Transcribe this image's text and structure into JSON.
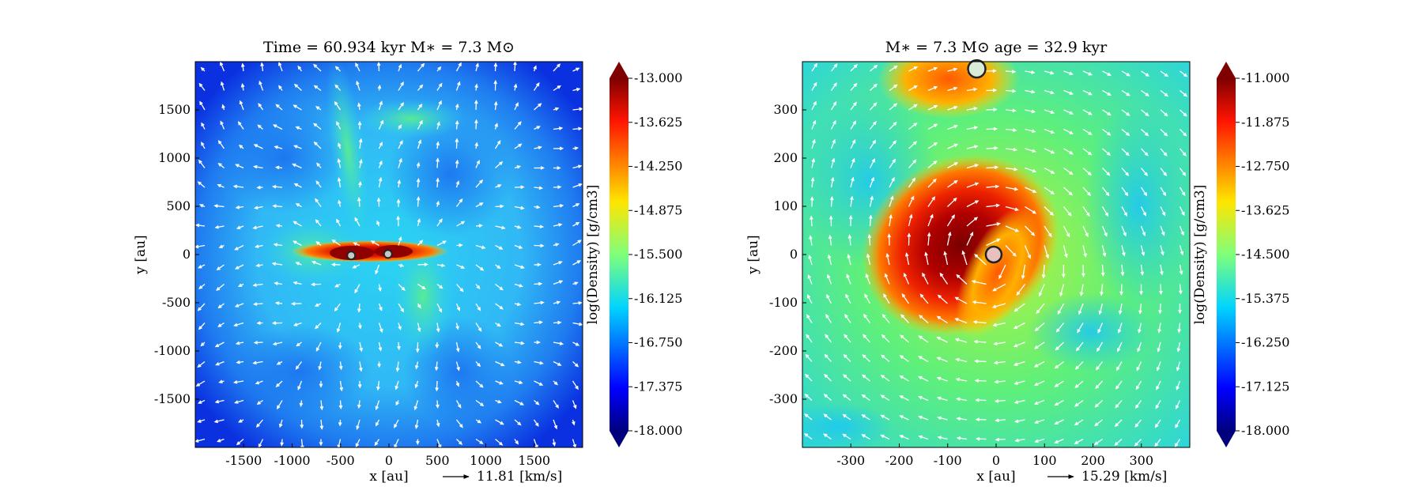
{
  "chart_data": [
    {
      "type": "heatmap",
      "title": "Time = 60.934 kyr    M∗ = 7.3 M⊙",
      "xlabel": "x [au]",
      "ylabel": "y [au]",
      "xlim": [
        -2000,
        2000
      ],
      "ylim": [
        -2000,
        2000
      ],
      "xticks": [
        -1500,
        -1000,
        -500,
        0,
        500,
        1000,
        1500
      ],
      "yticks": [
        -1500,
        -1000,
        -500,
        0,
        500,
        1000,
        1500
      ],
      "colorbar": {
        "label": "log(Density) [g/cm3]",
        "min": -18.0,
        "max": -13.0,
        "ticks": [
          "-13.000",
          "-13.625",
          "-14.250",
          "-14.875",
          "-15.500",
          "-16.125",
          "-16.750",
          "-17.375",
          "-18.000"
        ],
        "extend": "both"
      },
      "vector_key": {
        "value": 11.81,
        "label": "11.81 [km/s]"
      },
      "sinks": [
        {
          "x": -390,
          "y": -10
        },
        {
          "x": -10,
          "y": 5
        }
      ]
    },
    {
      "type": "heatmap",
      "title": "M∗ = 7.3 M⊙        age = 32.9 kyr",
      "xlabel": "x [au]",
      "ylabel": "y [au]",
      "xlim": [
        -400,
        400
      ],
      "ylim": [
        -400,
        400
      ],
      "xticks": [
        -300,
        -200,
        -100,
        0,
        100,
        200,
        300
      ],
      "yticks": [
        -300,
        -200,
        -100,
        0,
        100,
        200,
        300
      ],
      "colorbar": {
        "label": "log(Density) [g/cm3]",
        "min": -18.0,
        "max": -11.0,
        "ticks": [
          "-11.000",
          "-11.875",
          "-12.750",
          "-13.625",
          "-14.500",
          "-15.375",
          "-16.250",
          "-17.125",
          "-18.000"
        ],
        "extend": "both"
      },
      "vector_key": {
        "value": 15.29,
        "label": "15.29 [km/s]"
      },
      "sinks": [
        {
          "x": -40,
          "y": 385
        },
        {
          "x": -5,
          "y": 0
        }
      ]
    }
  ]
}
